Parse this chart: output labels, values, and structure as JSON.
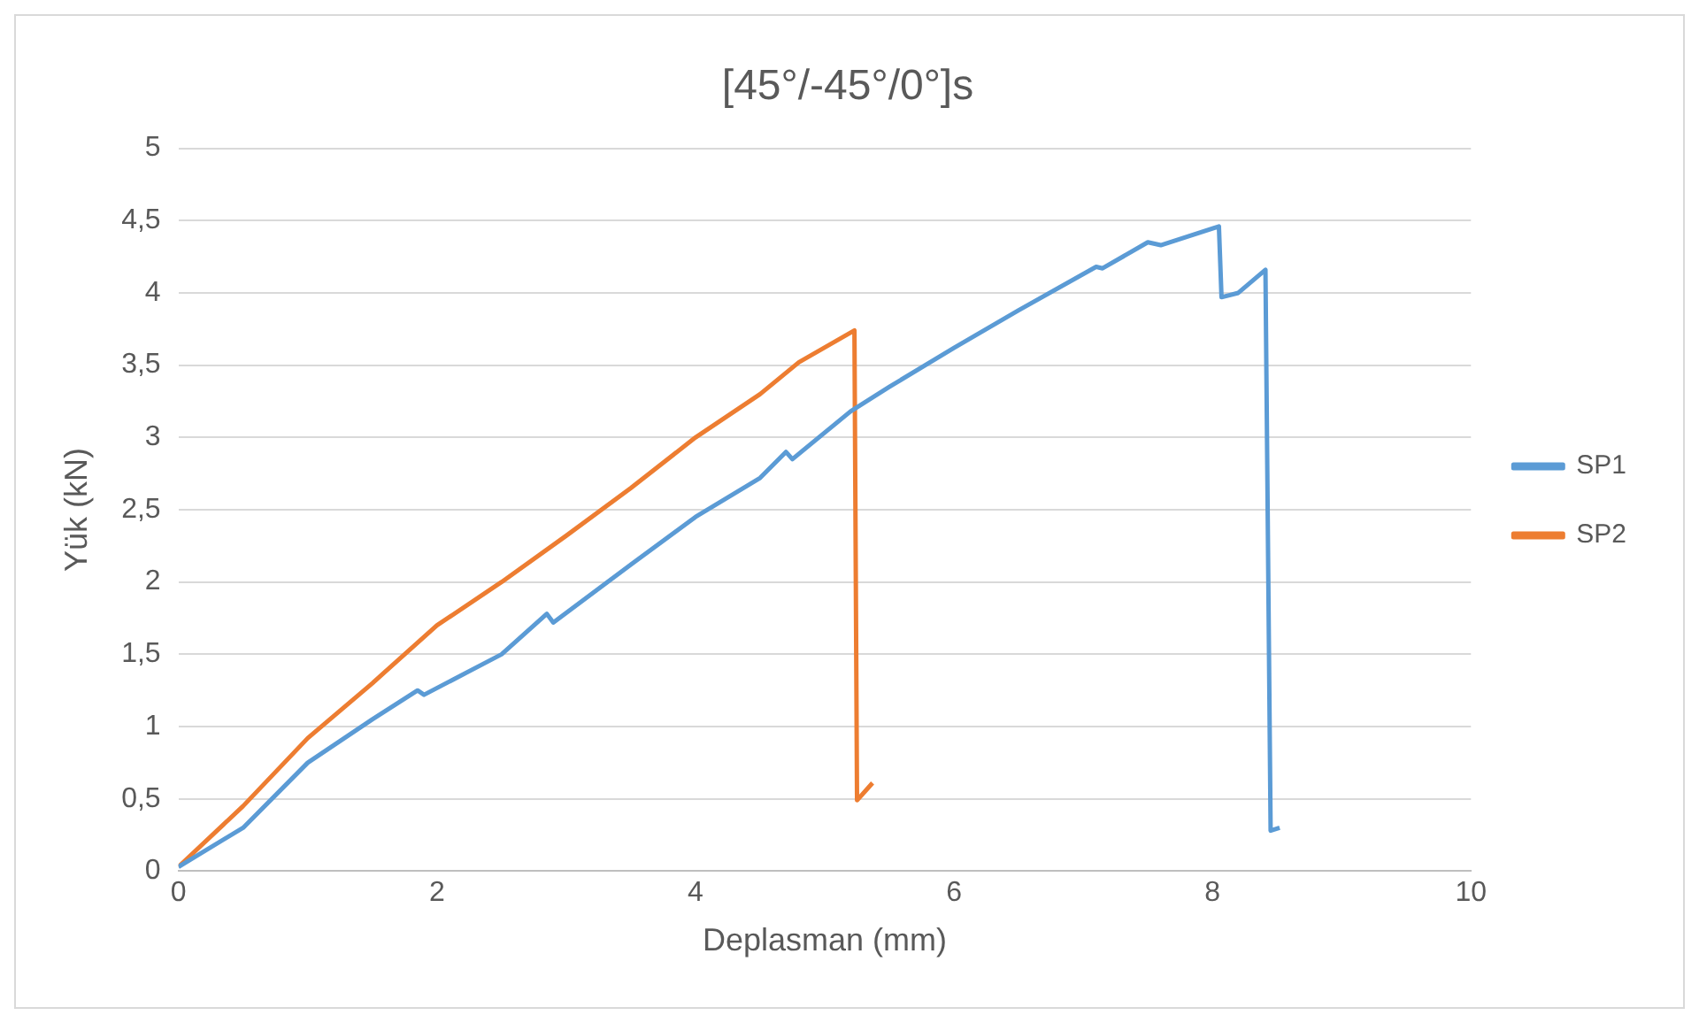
{
  "chart_data": {
    "type": "line",
    "title": "[45°/-45°/0°]s",
    "xlabel": "Deplasman (mm)",
    "ylabel": "Yük (kN)",
    "xlim": [
      0,
      10
    ],
    "xticks": [
      0,
      2,
      4,
      6,
      8,
      10
    ],
    "ylim": [
      0,
      5
    ],
    "yticks": [
      {
        "value": 0,
        "label": "0"
      },
      {
        "value": 0.5,
        "label": "0,5"
      },
      {
        "value": 1,
        "label": "1"
      },
      {
        "value": 1.5,
        "label": "1,5"
      },
      {
        "value": 2,
        "label": "2"
      },
      {
        "value": 2.5,
        "label": "2,5"
      },
      {
        "value": 3,
        "label": "3"
      },
      {
        "value": 3.5,
        "label": "3,5"
      },
      {
        "value": 4,
        "label": "4"
      },
      {
        "value": 4.5,
        "label": "4,5"
      },
      {
        "value": 5,
        "label": "5"
      }
    ],
    "grid": "y",
    "legend": "right",
    "marker": "none",
    "line_style": "solid",
    "series": [
      {
        "name": "SP1",
        "color": "#5b9bd5",
        "x": [
          0,
          0.5,
          1,
          1.5,
          1.85,
          1.9,
          2.5,
          2.85,
          2.9,
          3.5,
          4,
          4.5,
          4.7,
          4.75,
          5.2,
          5.5,
          6,
          6.5,
          7.1,
          7.15,
          7.5,
          7.6,
          8.05,
          8.07,
          8.2,
          8.41,
          8.45,
          8.52
        ],
        "values": [
          0.03,
          0.3,
          0.75,
          1.05,
          1.25,
          1.22,
          1.5,
          1.78,
          1.72,
          2.12,
          2.45,
          2.72,
          2.9,
          2.85,
          3.18,
          3.35,
          3.62,
          3.88,
          4.18,
          4.17,
          4.35,
          4.33,
          4.46,
          3.97,
          4.0,
          4.16,
          0.28,
          0.3
        ]
      },
      {
        "name": "SP2",
        "color": "#ed7d31",
        "x": [
          0,
          0.5,
          1,
          1.5,
          2,
          2.5,
          3,
          3.5,
          4,
          4.5,
          4.8,
          5.23,
          5.25,
          5.37
        ],
        "values": [
          0.03,
          0.45,
          0.92,
          1.3,
          1.7,
          2.0,
          2.32,
          2.65,
          3.0,
          3.3,
          3.52,
          3.74,
          0.49,
          0.61
        ]
      }
    ]
  }
}
